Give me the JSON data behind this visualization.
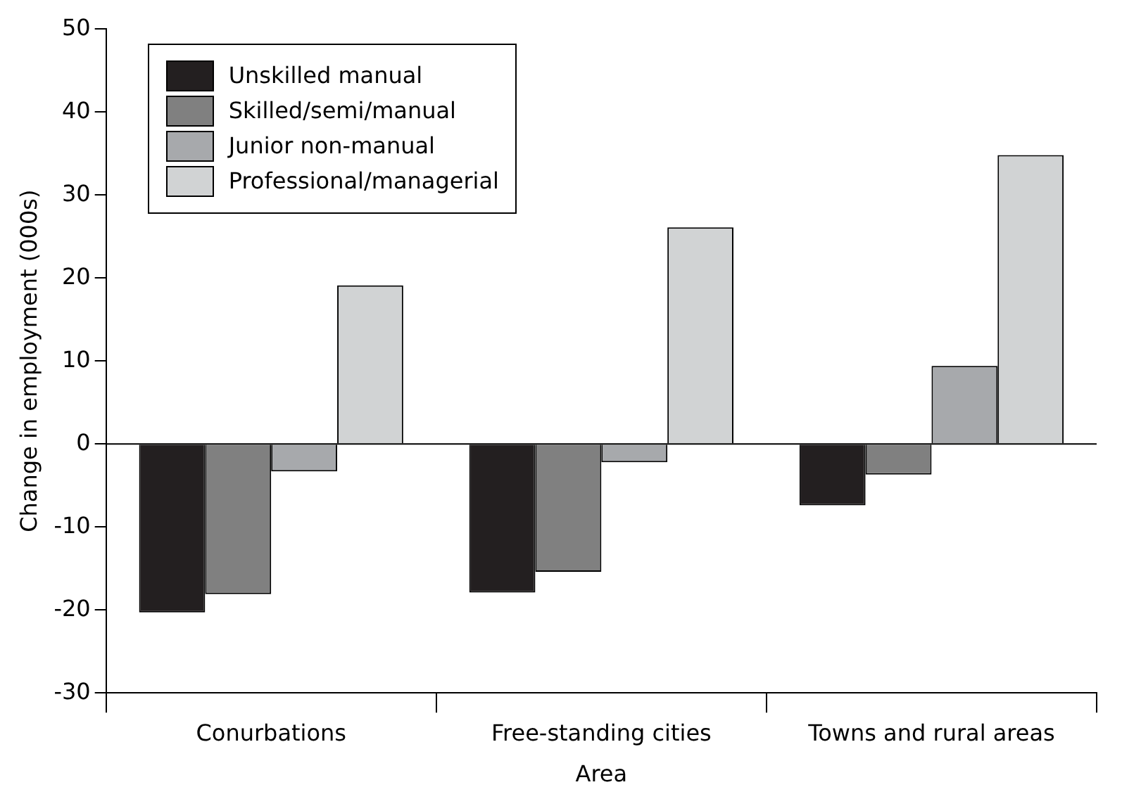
{
  "chart_data": {
    "type": "bar",
    "xlabel": "Area",
    "ylabel": "Change in employment (000s)",
    "categories": [
      "Conurbations",
      "Free-standing cities",
      "Towns and rural areas"
    ],
    "series": [
      {
        "name": "Unskilled manual",
        "color": "#231f20",
        "values": [
          -20.3,
          -17.9,
          -7.4
        ]
      },
      {
        "name": "Skilled/semi/manual",
        "color": "#808080",
        "values": [
          -18.1,
          -15.4,
          -3.7
        ]
      },
      {
        "name": "Junior non-manual",
        "color": "#a7a9ac",
        "values": [
          -3.3,
          -2.2,
          9.4
        ]
      },
      {
        "name": "Professional/managerial",
        "color": "#d1d3d4",
        "values": [
          19.1,
          26.1,
          34.8
        ]
      }
    ],
    "ylim": [
      -30,
      50
    ],
    "yticks": [
      -30,
      -20,
      -10,
      0,
      10,
      20,
      30,
      40,
      50
    ],
    "ref_lines": [
      {
        "axis": "y",
        "value": 0,
        "color": "#000000"
      }
    ],
    "grid": false,
    "legend": "top left"
  }
}
